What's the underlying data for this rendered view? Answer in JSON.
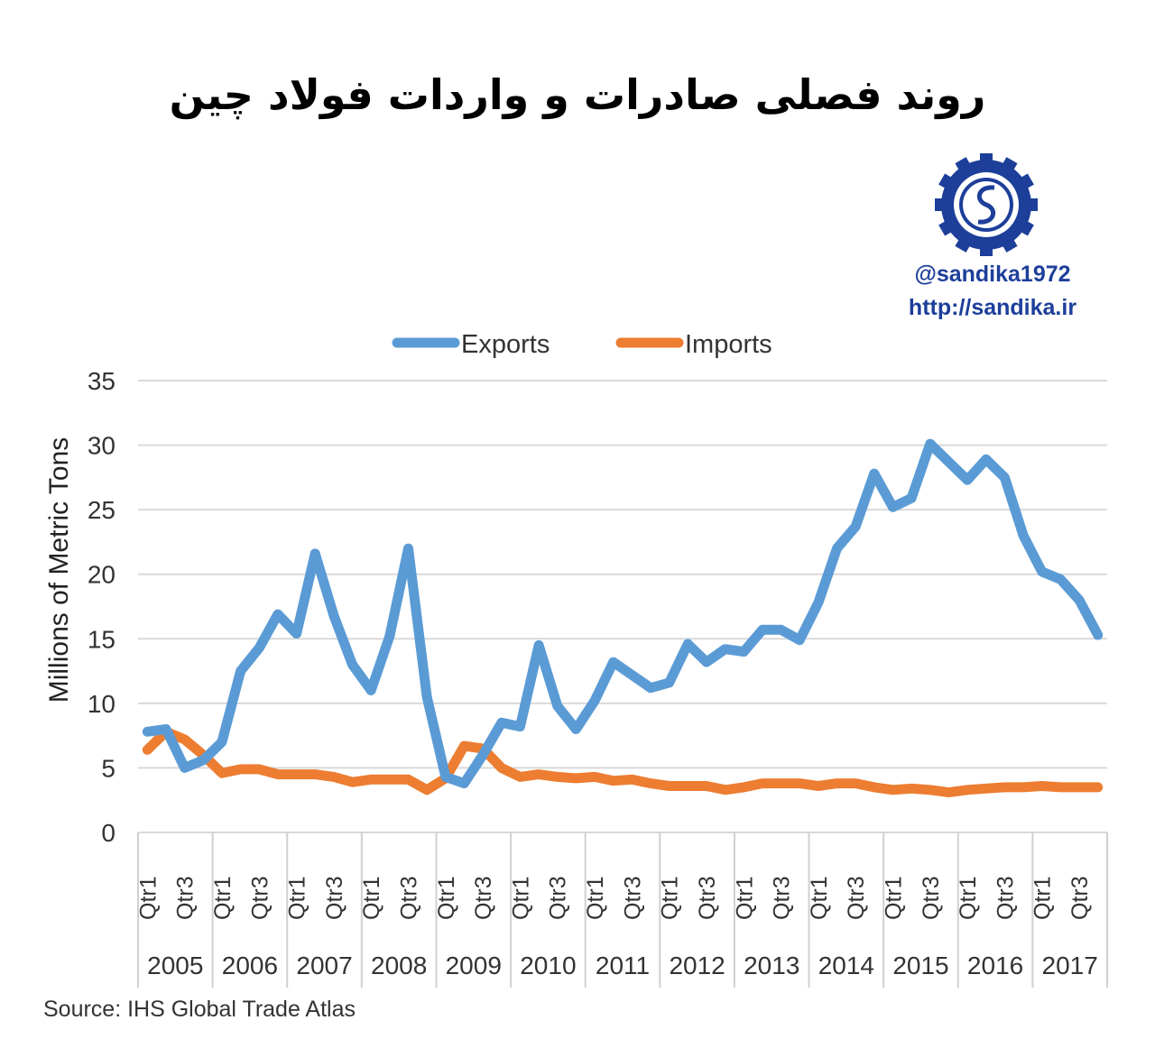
{
  "title": "روند فصلی صادرات و واردات فولاد چین",
  "brand": {
    "handle": "@sandika1972",
    "url": "http://sandika.ir",
    "logo_color": "#1d3f9a"
  },
  "source": "Source: IHS Global Trade Atlas",
  "chart_data": {
    "type": "line",
    "title": "روند فصلی صادرات و واردات فولاد چین",
    "xlabel": "",
    "ylabel": "Millions of Metric Tons",
    "ylim": [
      0,
      35
    ],
    "yticks": [
      0,
      5,
      10,
      15,
      20,
      25,
      30,
      35
    ],
    "grid": true,
    "legend": "top",
    "years": [
      "2005",
      "2006",
      "2007",
      "2008",
      "2009",
      "2010",
      "2011",
      "2012",
      "2013",
      "2014",
      "2015",
      "2016",
      "2017"
    ],
    "quarter_labels": [
      "Qtr1",
      "",
      "Qtr3",
      ""
    ],
    "series": [
      {
        "name": "Exports",
        "color": "#5b9bd5",
        "values": [
          7.8,
          8.0,
          5.0,
          5.6,
          7.0,
          12.5,
          14.3,
          16.9,
          15.4,
          21.6,
          16.8,
          13.0,
          11.0,
          15.2,
          22.0,
          10.5,
          4.3,
          3.8,
          6.0,
          8.5,
          8.2,
          14.5,
          9.8,
          8.0,
          10.2,
          13.2,
          12.2,
          11.2,
          11.6,
          14.6,
          13.2,
          14.2,
          14.0,
          15.7,
          15.7,
          14.9,
          17.8,
          22.0,
          23.7,
          27.8,
          25.2,
          25.9,
          30.1,
          28.7,
          27.3,
          28.9,
          27.5,
          23.0,
          20.2,
          19.6,
          18.0,
          15.3
        ]
      },
      {
        "name": "Imports",
        "color": "#ed7d31",
        "values": [
          6.4,
          7.8,
          7.2,
          6.0,
          4.6,
          4.9,
          4.9,
          4.5,
          4.5,
          4.5,
          4.3,
          3.9,
          4.1,
          4.1,
          4.1,
          3.3,
          4.2,
          6.7,
          6.5,
          5.0,
          4.3,
          4.5,
          4.3,
          4.2,
          4.3,
          4.0,
          4.1,
          3.8,
          3.6,
          3.6,
          3.6,
          3.3,
          3.5,
          3.8,
          3.8,
          3.8,
          3.6,
          3.8,
          3.8,
          3.5,
          3.3,
          3.4,
          3.3,
          3.1,
          3.3,
          3.4,
          3.5,
          3.5,
          3.6,
          3.5,
          3.5,
          3.5
        ]
      }
    ]
  }
}
